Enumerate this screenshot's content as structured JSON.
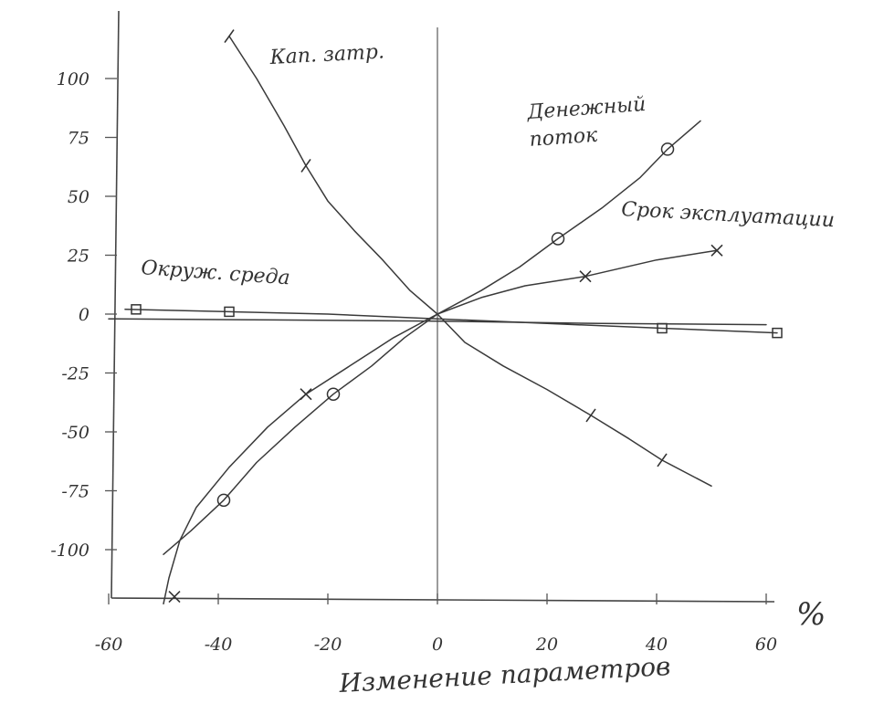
{
  "chart_data": {
    "type": "line",
    "title": "",
    "xlabel": "Изменение параметров",
    "x_unit": "%",
    "ylabel": "",
    "xlim": [
      -60,
      60
    ],
    "ylim": [
      -125,
      120
    ],
    "xticks": [
      "-60",
      "-40",
      "-20",
      "0",
      "20",
      "40",
      "60"
    ],
    "yticks": [
      "100",
      "75",
      "50",
      "25",
      "0",
      "-25",
      "-50",
      "-75",
      "-100"
    ],
    "grid": false,
    "legend": "none",
    "series": [
      {
        "name": "Кап. затр.",
        "marker": "tick",
        "points": [
          [
            -38,
            118
          ],
          [
            -33,
            100
          ],
          [
            -28,
            80
          ],
          [
            -24,
            63
          ],
          [
            -20,
            48
          ],
          [
            -15,
            35
          ],
          [
            -10,
            23
          ],
          [
            -5,
            10
          ],
          [
            0,
            0
          ],
          [
            5,
            -12
          ],
          [
            12,
            -22
          ],
          [
            20,
            -32
          ],
          [
            28,
            -43
          ],
          [
            35,
            -53
          ],
          [
            41,
            -62
          ],
          [
            50,
            -73
          ]
        ],
        "marker_points": [
          [
            -38,
            118
          ],
          [
            -24,
            63
          ],
          [
            28,
            -43
          ],
          [
            41,
            -62
          ]
        ]
      },
      {
        "name": "Денежный поток",
        "marker": "circle",
        "points": [
          [
            -50,
            -102
          ],
          [
            -45,
            -92
          ],
          [
            -39,
            -79
          ],
          [
            -33,
            -63
          ],
          [
            -26,
            -48
          ],
          [
            -19,
            -34
          ],
          [
            -12,
            -22
          ],
          [
            -6,
            -10
          ],
          [
            0,
            0
          ],
          [
            8,
            10
          ],
          [
            15,
            20
          ],
          [
            22,
            32
          ],
          [
            30,
            45
          ],
          [
            37,
            58
          ],
          [
            42,
            70
          ],
          [
            48,
            82
          ]
        ],
        "marker_points": [
          [
            -39,
            -79
          ],
          [
            -19,
            -34
          ],
          [
            22,
            32
          ],
          [
            42,
            70
          ]
        ]
      },
      {
        "name": "Срок эксплуатации",
        "marker": "x",
        "points": [
          [
            -50,
            -123
          ],
          [
            -49,
            -112
          ],
          [
            -47,
            -96
          ],
          [
            -44,
            -82
          ],
          [
            -38,
            -65
          ],
          [
            -31,
            -48
          ],
          [
            -24,
            -34
          ],
          [
            -16,
            -22
          ],
          [
            -8,
            -10
          ],
          [
            0,
            0
          ],
          [
            8,
            7
          ],
          [
            16,
            12
          ],
          [
            27,
            16
          ],
          [
            40,
            23
          ],
          [
            51,
            27
          ]
        ],
        "marker_points": [
          [
            -48,
            -120
          ],
          [
            -24,
            -34
          ],
          [
            27,
            16
          ],
          [
            51,
            27
          ]
        ]
      },
      {
        "name": "Окруж. среда",
        "marker": "square",
        "points": [
          [
            -57,
            2
          ],
          [
            -38,
            1
          ],
          [
            -20,
            0
          ],
          [
            0,
            -2
          ],
          [
            20,
            -4
          ],
          [
            41,
            -6
          ],
          [
            62,
            -8
          ]
        ],
        "marker_points": [
          [
            -55,
            2
          ],
          [
            -38,
            1
          ],
          [
            41,
            -6
          ],
          [
            62,
            -8
          ]
        ]
      },
      {
        "name": "",
        "marker": "none",
        "points": [
          [
            -60,
            -2
          ],
          [
            -30,
            -2.5
          ],
          [
            0,
            -3
          ],
          [
            30,
            -4
          ],
          [
            60,
            -4.5
          ]
        ],
        "marker_points": []
      }
    ]
  }
}
